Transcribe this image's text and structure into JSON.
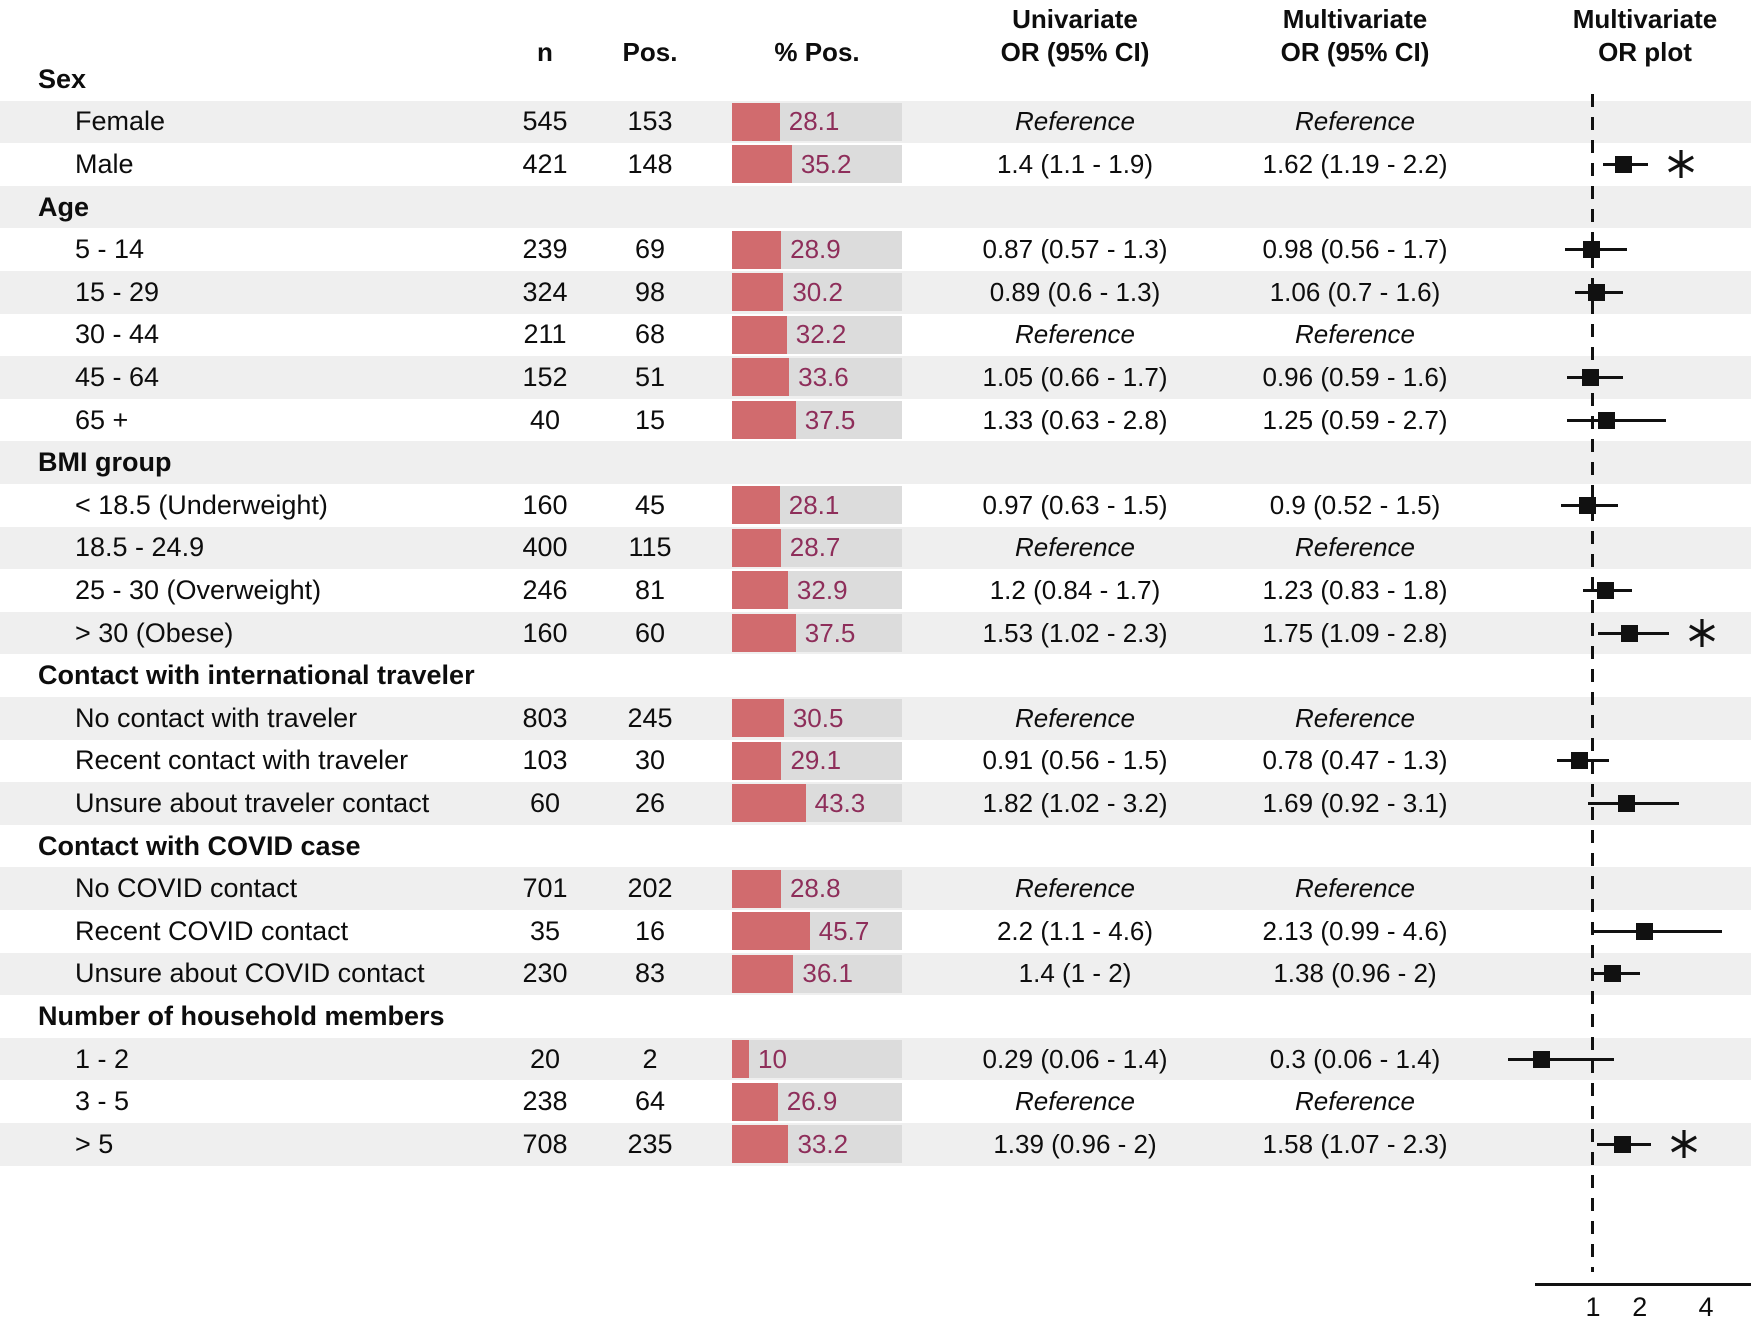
{
  "figure": {
    "columns": {
      "n": "n",
      "pos": "Pos.",
      "pct": "% Pos.",
      "uni1": "Univariate",
      "uni2": "OR (95% CI)",
      "multi1": "Multivariate",
      "multi2": "OR (95% CI)",
      "plot1": "Multivariate",
      "plot2": "OR plot"
    },
    "colors": {
      "ink": "#111111",
      "text": "#0d0d0d",
      "row_alt_bg": "#efefef",
      "bar_track": "#dcdcdc",
      "bar_fill": "#d16b6e",
      "pct_text": "#8e2e5a"
    },
    "reference_label": "Reference",
    "significance_marker": "asterisk"
  },
  "chart_data": {
    "type": "table",
    "title": "",
    "columns": [
      "",
      "n",
      "Pos.",
      "% Pos.",
      "Univariate OR (95% CI)",
      "Multivariate OR (95% CI)",
      "Multivariate OR plot"
    ],
    "pct_axis": {
      "min": 0,
      "max": 100
    },
    "or_axis": {
      "scale": "sqrt",
      "reference_line": 1,
      "ticks": [
        "1",
        "2",
        "4"
      ],
      "tick_values": [
        1,
        2,
        4
      ]
    },
    "rows": [
      {
        "row": "group",
        "label": "Sex"
      },
      {
        "row": "item",
        "label": "Female",
        "n": 545,
        "pos": 153,
        "pct": 28.1,
        "uni": "Reference",
        "multi": "Reference",
        "ref": true
      },
      {
        "row": "item",
        "label": "Male",
        "n": 421,
        "pos": 148,
        "pct": 35.2,
        "uni": "1.4 (1.1 - 1.9)",
        "multi": "1.62 (1.19 - 2.2)",
        "or": 1.62,
        "lo": 1.19,
        "hi": 2.2,
        "sig": true
      },
      {
        "row": "group",
        "label": "Age"
      },
      {
        "row": "item",
        "label": "5 - 14",
        "n": 239,
        "pos": 69,
        "pct": 28.9,
        "uni": "0.87 (0.57 - 1.3)",
        "multi": "0.98 (0.56 - 1.7)",
        "or": 0.98,
        "lo": 0.56,
        "hi": 1.7
      },
      {
        "row": "item",
        "label": "15 - 29",
        "n": 324,
        "pos": 98,
        "pct": 30.2,
        "uni": "0.89 (0.6 - 1.3)",
        "multi": "1.06 (0.7 - 1.6)",
        "or": 1.06,
        "lo": 0.7,
        "hi": 1.6
      },
      {
        "row": "item",
        "label": "30 - 44",
        "n": 211,
        "pos": 68,
        "pct": 32.2,
        "uni": "Reference",
        "multi": "Reference",
        "ref": true
      },
      {
        "row": "item",
        "label": "45 - 64",
        "n": 152,
        "pos": 51,
        "pct": 33.6,
        "uni": "1.05 (0.66 - 1.7)",
        "multi": "0.96 (0.59 - 1.6)",
        "or": 0.96,
        "lo": 0.59,
        "hi": 1.6
      },
      {
        "row": "item",
        "label": "65 +",
        "n": 40,
        "pos": 15,
        "pct": 37.5,
        "uni": "1.33 (0.63 - 2.8)",
        "multi": "1.25 (0.59 - 2.7)",
        "or": 1.25,
        "lo": 0.59,
        "hi": 2.7
      },
      {
        "row": "group",
        "label": "BMI group"
      },
      {
        "row": "item",
        "label": "< 18.5 (Underweight)",
        "n": 160,
        "pos": 45,
        "pct": 28.1,
        "uni": "0.97 (0.63 - 1.5)",
        "multi": "0.9 (0.52 - 1.5)",
        "or": 0.9,
        "lo": 0.52,
        "hi": 1.5
      },
      {
        "row": "item",
        "label": "18.5 - 24.9",
        "n": 400,
        "pos": 115,
        "pct": 28.7,
        "uni": "Reference",
        "multi": "Reference",
        "ref": true
      },
      {
        "row": "item",
        "label": "25 - 30 (Overweight)",
        "n": 246,
        "pos": 81,
        "pct": 32.9,
        "uni": "1.2 (0.84 - 1.7)",
        "multi": "1.23 (0.83 - 1.8)",
        "or": 1.23,
        "lo": 0.83,
        "hi": 1.8
      },
      {
        "row": "item",
        "label": "> 30 (Obese)",
        "n": 160,
        "pos": 60,
        "pct": 37.5,
        "uni": "1.53 (1.02 - 2.3)",
        "multi": "1.75 (1.09 - 2.8)",
        "or": 1.75,
        "lo": 1.09,
        "hi": 2.8,
        "sig": true
      },
      {
        "row": "group",
        "label": "Contact with international traveler"
      },
      {
        "row": "item",
        "label": "No contact with traveler",
        "n": 803,
        "pos": 245,
        "pct": 30.5,
        "uni": "Reference",
        "multi": "Reference",
        "ref": true
      },
      {
        "row": "item",
        "label": "Recent contact with traveler",
        "n": 103,
        "pos": 30,
        "pct": 29.1,
        "uni": "0.91 (0.56 - 1.5)",
        "multi": "0.78 (0.47 - 1.3)",
        "or": 0.78,
        "lo": 0.47,
        "hi": 1.3
      },
      {
        "row": "item",
        "label": "Unsure about traveler contact",
        "n": 60,
        "pos": 26,
        "pct": 43.3,
        "uni": "1.82 (1.02 - 3.2)",
        "multi": "1.69 (0.92 - 3.1)",
        "or": 1.69,
        "lo": 0.92,
        "hi": 3.1
      },
      {
        "row": "group",
        "label": "Contact with COVID case"
      },
      {
        "row": "item",
        "label": "No COVID contact",
        "n": 701,
        "pos": 202,
        "pct": 28.8,
        "uni": "Reference",
        "multi": "Reference",
        "ref": true
      },
      {
        "row": "item",
        "label": "Recent COVID contact",
        "n": 35,
        "pos": 16,
        "pct": 45.7,
        "uni": "2.2 (1.1 - 4.6)",
        "multi": "2.13 (0.99 - 4.6)",
        "or": 2.13,
        "lo": 0.99,
        "hi": 4.6
      },
      {
        "row": "item",
        "label": "Unsure about COVID contact",
        "n": 230,
        "pos": 83,
        "pct": 36.1,
        "uni": "1.4 (1 - 2)",
        "multi": "1.38 (0.96 - 2)",
        "or": 1.38,
        "lo": 0.96,
        "hi": 2
      },
      {
        "row": "group",
        "label": "Number of household members"
      },
      {
        "row": "item",
        "label": "1 - 2",
        "n": 20,
        "pos": 2,
        "pct": 10,
        "uni": "0.29 (0.06 - 1.4)",
        "multi": "0.3 (0.06 - 1.4)",
        "or": 0.3,
        "lo": 0.06,
        "hi": 1.4
      },
      {
        "row": "item",
        "label": "3 - 5",
        "n": 238,
        "pos": 64,
        "pct": 26.9,
        "uni": "Reference",
        "multi": "Reference",
        "ref": true
      },
      {
        "row": "item",
        "label": "> 5",
        "n": 708,
        "pos": 235,
        "pct": 33.2,
        "uni": "1.39 (0.96 - 2)",
        "multi": "1.58 (1.07 - 2.3)",
        "or": 1.58,
        "lo": 1.07,
        "hi": 2.3,
        "sig": true
      }
    ]
  }
}
